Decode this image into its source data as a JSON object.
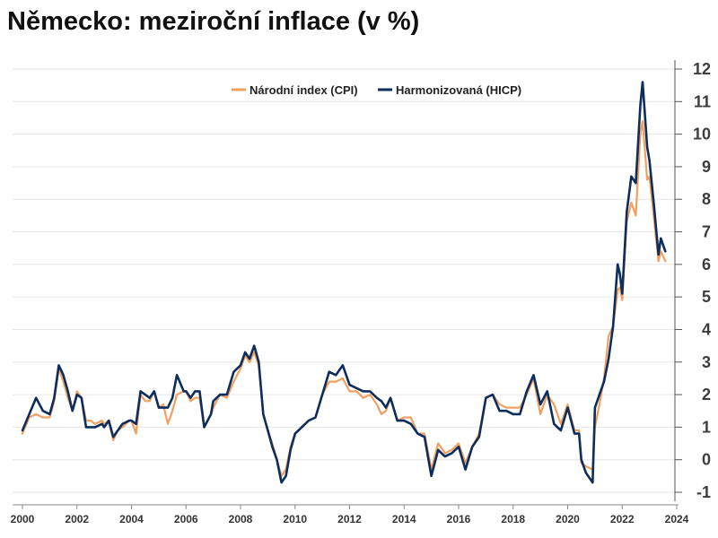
{
  "chart_data": {
    "type": "line",
    "title": "Německo: meziroční inflace (v %)",
    "x_range": [
      "2000-01",
      "2023-08"
    ],
    "ylim": [
      -1,
      12
    ],
    "y_ticks": [
      12,
      11,
      10,
      9,
      8,
      7,
      6,
      5,
      4,
      3,
      2,
      1,
      0,
      -1
    ],
    "x_ticks": [
      "2000",
      "2002",
      "2004",
      "2006",
      "2008",
      "2010",
      "2012",
      "2014",
      "2016",
      "2018",
      "2020",
      "2022",
      "2024"
    ],
    "grid": "horizontal",
    "legend_position": "top",
    "series": [
      {
        "name": "Národní index (CPI)",
        "color": "#f0a060",
        "points": [
          [
            "2000-01",
            0.8
          ],
          [
            "2000-04",
            1.3
          ],
          [
            "2000-07",
            1.4
          ],
          [
            "2000-10",
            1.3
          ],
          [
            "2001-01",
            1.3
          ],
          [
            "2001-03",
            1.8
          ],
          [
            "2001-05",
            2.8
          ],
          [
            "2001-07",
            2.4
          ],
          [
            "2001-09",
            1.9
          ],
          [
            "2001-11",
            1.5
          ],
          [
            "2002-01",
            2.1
          ],
          [
            "2002-03",
            1.9
          ],
          [
            "2002-05",
            1.2
          ],
          [
            "2002-07",
            1.2
          ],
          [
            "2002-09",
            1.1
          ],
          [
            "2002-12",
            1.2
          ],
          [
            "2003-01",
            1.1
          ],
          [
            "2003-03",
            1.2
          ],
          [
            "2003-05",
            0.6
          ],
          [
            "2003-07",
            0.9
          ],
          [
            "2003-09",
            1.0
          ],
          [
            "2003-12",
            1.2
          ],
          [
            "2004-01",
            1.2
          ],
          [
            "2004-03",
            0.8
          ],
          [
            "2004-05",
            2.0
          ],
          [
            "2004-07",
            1.8
          ],
          [
            "2004-09",
            1.8
          ],
          [
            "2004-11",
            2.1
          ],
          [
            "2005-01",
            1.6
          ],
          [
            "2005-03",
            1.7
          ],
          [
            "2005-05",
            1.1
          ],
          [
            "2005-07",
            1.5
          ],
          [
            "2005-09",
            2.0
          ],
          [
            "2005-12",
            2.1
          ],
          [
            "2006-01",
            2.1
          ],
          [
            "2006-03",
            1.8
          ],
          [
            "2006-05",
            1.9
          ],
          [
            "2006-07",
            1.9
          ],
          [
            "2006-09",
            1.0
          ],
          [
            "2006-12",
            1.4
          ],
          [
            "2007-01",
            1.6
          ],
          [
            "2007-04",
            2.0
          ],
          [
            "2007-07",
            1.9
          ],
          [
            "2007-10",
            2.4
          ],
          [
            "2008-01",
            2.8
          ],
          [
            "2008-03",
            3.2
          ],
          [
            "2008-05",
            3.0
          ],
          [
            "2008-07",
            3.3
          ],
          [
            "2008-09",
            2.9
          ],
          [
            "2008-11",
            1.4
          ],
          [
            "2009-01",
            0.9
          ],
          [
            "2009-03",
            0.5
          ],
          [
            "2009-05",
            0.0
          ],
          [
            "2009-07",
            -0.5
          ],
          [
            "2009-09",
            -0.3
          ],
          [
            "2009-11",
            0.4
          ],
          [
            "2010-01",
            0.8
          ],
          [
            "2010-04",
            1.0
          ],
          [
            "2010-07",
            1.2
          ],
          [
            "2010-10",
            1.3
          ],
          [
            "2011-01",
            2.0
          ],
          [
            "2011-04",
            2.4
          ],
          [
            "2011-07",
            2.4
          ],
          [
            "2011-10",
            2.5
          ],
          [
            "2012-01",
            2.1
          ],
          [
            "2012-04",
            2.1
          ],
          [
            "2012-07",
            1.9
          ],
          [
            "2012-10",
            2.0
          ],
          [
            "2013-01",
            1.7
          ],
          [
            "2013-03",
            1.4
          ],
          [
            "2013-05",
            1.5
          ],
          [
            "2013-07",
            1.9
          ],
          [
            "2013-10",
            1.2
          ],
          [
            "2014-01",
            1.3
          ],
          [
            "2014-04",
            1.3
          ],
          [
            "2014-07",
            0.8
          ],
          [
            "2014-10",
            0.8
          ],
          [
            "2015-01",
            -0.3
          ],
          [
            "2015-04",
            0.5
          ],
          [
            "2015-07",
            0.2
          ],
          [
            "2015-10",
            0.3
          ],
          [
            "2016-01",
            0.5
          ],
          [
            "2016-04",
            -0.1
          ],
          [
            "2016-07",
            0.4
          ],
          [
            "2016-10",
            0.8
          ],
          [
            "2017-01",
            1.9
          ],
          [
            "2017-04",
            2.0
          ],
          [
            "2017-07",
            1.7
          ],
          [
            "2017-10",
            1.6
          ],
          [
            "2018-01",
            1.6
          ],
          [
            "2018-04",
            1.6
          ],
          [
            "2018-07",
            2.0
          ],
          [
            "2018-10",
            2.5
          ],
          [
            "2019-01",
            1.4
          ],
          [
            "2019-04",
            2.0
          ],
          [
            "2019-07",
            1.7
          ],
          [
            "2019-10",
            1.1
          ],
          [
            "2020-01",
            1.7
          ],
          [
            "2020-04",
            0.9
          ],
          [
            "2020-06",
            0.9
          ],
          [
            "2020-07",
            -0.1
          ],
          [
            "2020-09",
            -0.2
          ],
          [
            "2020-12",
            -0.3
          ],
          [
            "2021-01",
            1.0
          ],
          [
            "2021-03",
            1.7
          ],
          [
            "2021-05",
            2.5
          ],
          [
            "2021-07",
            3.8
          ],
          [
            "2021-09",
            4.1
          ],
          [
            "2021-11",
            5.2
          ],
          [
            "2021-12",
            5.3
          ],
          [
            "2022-01",
            4.9
          ],
          [
            "2022-03",
            7.3
          ],
          [
            "2022-05",
            7.9
          ],
          [
            "2022-07",
            7.5
          ],
          [
            "2022-09",
            10.0
          ],
          [
            "2022-10",
            10.4
          ],
          [
            "2022-12",
            8.6
          ],
          [
            "2023-01",
            8.7
          ],
          [
            "2023-03",
            7.4
          ],
          [
            "2023-05",
            6.1
          ],
          [
            "2023-06",
            6.4
          ],
          [
            "2023-08",
            6.1
          ]
        ]
      },
      {
        "name": "Harmonizovaná (HICP)",
        "color": "#0c2d5e",
        "points": [
          [
            "2000-01",
            0.9
          ],
          [
            "2000-04",
            1.4
          ],
          [
            "2000-07",
            1.9
          ],
          [
            "2000-10",
            1.5
          ],
          [
            "2001-01",
            1.4
          ],
          [
            "2001-03",
            1.9
          ],
          [
            "2001-05",
            2.9
          ],
          [
            "2001-07",
            2.6
          ],
          [
            "2001-09",
            2.1
          ],
          [
            "2001-11",
            1.5
          ],
          [
            "2002-01",
            2.0
          ],
          [
            "2002-03",
            1.9
          ],
          [
            "2002-05",
            1.0
          ],
          [
            "2002-07",
            1.0
          ],
          [
            "2002-09",
            1.0
          ],
          [
            "2002-12",
            1.1
          ],
          [
            "2003-01",
            1.0
          ],
          [
            "2003-03",
            1.2
          ],
          [
            "2003-05",
            0.7
          ],
          [
            "2003-07",
            0.9
          ],
          [
            "2003-09",
            1.1
          ],
          [
            "2003-12",
            1.2
          ],
          [
            "2004-01",
            1.2
          ],
          [
            "2004-03",
            1.1
          ],
          [
            "2004-05",
            2.1
          ],
          [
            "2004-07",
            2.0
          ],
          [
            "2004-09",
            1.9
          ],
          [
            "2004-11",
            2.1
          ],
          [
            "2005-01",
            1.6
          ],
          [
            "2005-03",
            1.6
          ],
          [
            "2005-05",
            1.6
          ],
          [
            "2005-07",
            1.9
          ],
          [
            "2005-09",
            2.6
          ],
          [
            "2005-12",
            2.1
          ],
          [
            "2006-01",
            2.1
          ],
          [
            "2006-03",
            1.9
          ],
          [
            "2006-05",
            2.1
          ],
          [
            "2006-07",
            2.1
          ],
          [
            "2006-09",
            1.0
          ],
          [
            "2006-12",
            1.4
          ],
          [
            "2007-01",
            1.8
          ],
          [
            "2007-04",
            2.0
          ],
          [
            "2007-07",
            2.0
          ],
          [
            "2007-10",
            2.7
          ],
          [
            "2008-01",
            2.9
          ],
          [
            "2008-03",
            3.3
          ],
          [
            "2008-05",
            3.1
          ],
          [
            "2008-07",
            3.5
          ],
          [
            "2008-09",
            3.0
          ],
          [
            "2008-11",
            1.4
          ],
          [
            "2009-01",
            0.9
          ],
          [
            "2009-03",
            0.4
          ],
          [
            "2009-05",
            0.0
          ],
          [
            "2009-07",
            -0.7
          ],
          [
            "2009-09",
            -0.5
          ],
          [
            "2009-11",
            0.3
          ],
          [
            "2010-01",
            0.8
          ],
          [
            "2010-04",
            1.0
          ],
          [
            "2010-07",
            1.2
          ],
          [
            "2010-10",
            1.3
          ],
          [
            "2011-01",
            2.0
          ],
          [
            "2011-04",
            2.7
          ],
          [
            "2011-07",
            2.6
          ],
          [
            "2011-10",
            2.9
          ],
          [
            "2012-01",
            2.3
          ],
          [
            "2012-04",
            2.2
          ],
          [
            "2012-07",
            2.1
          ],
          [
            "2012-10",
            2.1
          ],
          [
            "2013-01",
            1.9
          ],
          [
            "2013-03",
            1.8
          ],
          [
            "2013-05",
            1.6
          ],
          [
            "2013-07",
            1.9
          ],
          [
            "2013-10",
            1.2
          ],
          [
            "2014-01",
            1.2
          ],
          [
            "2014-04",
            1.1
          ],
          [
            "2014-07",
            0.8
          ],
          [
            "2014-10",
            0.7
          ],
          [
            "2015-01",
            -0.5
          ],
          [
            "2015-04",
            0.3
          ],
          [
            "2015-07",
            0.1
          ],
          [
            "2015-10",
            0.2
          ],
          [
            "2016-01",
            0.4
          ],
          [
            "2016-04",
            -0.3
          ],
          [
            "2016-07",
            0.4
          ],
          [
            "2016-10",
            0.7
          ],
          [
            "2017-01",
            1.9
          ],
          [
            "2017-04",
            2.0
          ],
          [
            "2017-07",
            1.5
          ],
          [
            "2017-10",
            1.5
          ],
          [
            "2018-01",
            1.4
          ],
          [
            "2018-04",
            1.4
          ],
          [
            "2018-07",
            2.1
          ],
          [
            "2018-10",
            2.6
          ],
          [
            "2019-01",
            1.7
          ],
          [
            "2019-04",
            2.1
          ],
          [
            "2019-07",
            1.1
          ],
          [
            "2019-10",
            0.9
          ],
          [
            "2020-01",
            1.6
          ],
          [
            "2020-04",
            0.8
          ],
          [
            "2020-06",
            0.8
          ],
          [
            "2020-07",
            0.0
          ],
          [
            "2020-09",
            -0.4
          ],
          [
            "2020-12",
            -0.7
          ],
          [
            "2021-01",
            1.6
          ],
          [
            "2021-03",
            2.0
          ],
          [
            "2021-05",
            2.4
          ],
          [
            "2021-07",
            3.1
          ],
          [
            "2021-09",
            4.1
          ],
          [
            "2021-11",
            6.0
          ],
          [
            "2021-12",
            5.7
          ],
          [
            "2022-01",
            5.1
          ],
          [
            "2022-03",
            7.6
          ],
          [
            "2022-05",
            8.7
          ],
          [
            "2022-07",
            8.5
          ],
          [
            "2022-09",
            10.9
          ],
          [
            "2022-10",
            11.6
          ],
          [
            "2022-12",
            9.6
          ],
          [
            "2023-01",
            9.2
          ],
          [
            "2023-03",
            7.8
          ],
          [
            "2023-05",
            6.3
          ],
          [
            "2023-06",
            6.8
          ],
          [
            "2023-08",
            6.4
          ]
        ]
      }
    ]
  }
}
